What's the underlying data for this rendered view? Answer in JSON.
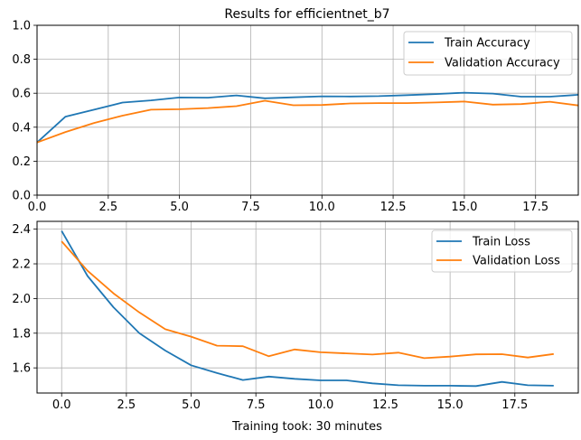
{
  "chart_data": [
    {
      "type": "line",
      "title": "Results for efficientnet_b7",
      "xlabel": "",
      "ylabel": "",
      "xlim": [
        0,
        19
      ],
      "ylim": [
        0,
        1.0
      ],
      "grid": true,
      "legend_position": "top-right",
      "xticks": [
        "0.0",
        "2.5",
        "5.0",
        "7.5",
        "10.0",
        "12.5",
        "15.0",
        "17.5"
      ],
      "yticks": [
        "0.0",
        "0.2",
        "0.4",
        "0.6",
        "0.8",
        "1.0"
      ],
      "x": [
        0,
        1,
        2,
        3,
        4,
        5,
        6,
        7,
        8,
        9,
        10,
        11,
        12,
        13,
        14,
        15,
        16,
        17,
        18,
        19
      ],
      "series": [
        {
          "name": "Train Accuracy",
          "color": "#1f77b4",
          "values": [
            0.31,
            0.462,
            0.503,
            0.545,
            0.558,
            0.575,
            0.574,
            0.587,
            0.57,
            0.576,
            0.582,
            0.581,
            0.583,
            0.589,
            0.595,
            0.603,
            0.598,
            0.58,
            0.58,
            0.591
          ]
        },
        {
          "name": "Validation Accuracy",
          "color": "#ff7f0e",
          "values": [
            0.31,
            0.372,
            0.425,
            0.468,
            0.503,
            0.506,
            0.513,
            0.524,
            0.556,
            0.529,
            0.531,
            0.54,
            0.542,
            0.542,
            0.546,
            0.551,
            0.533,
            0.536,
            0.55,
            0.528
          ]
        }
      ]
    },
    {
      "type": "line",
      "title": "",
      "xlabel": "Training took: 30 minutes",
      "ylabel": "",
      "xlim": [
        -0.95,
        19.95
      ],
      "ylim": [
        1.455,
        2.445
      ],
      "grid": true,
      "legend_position": "top-right",
      "xticks": [
        "0.0",
        "2.5",
        "5.0",
        "7.5",
        "10.0",
        "12.5",
        "15.0",
        "17.5"
      ],
      "yticks": [
        "1.6",
        "1.8",
        "2.0",
        "2.2",
        "2.4"
      ],
      "x": [
        0,
        1,
        2,
        3,
        4,
        5,
        6,
        7,
        8,
        9,
        10,
        11,
        12,
        13,
        14,
        15,
        16,
        17,
        18,
        19
      ],
      "series": [
        {
          "name": "Train Loss",
          "color": "#1f77b4",
          "values": [
            2.39,
            2.13,
            1.95,
            1.8,
            1.7,
            1.615,
            1.57,
            1.53,
            1.55,
            1.537,
            1.528,
            1.528,
            1.511,
            1.5,
            1.497,
            1.497,
            1.495,
            1.519,
            1.5,
            1.497
          ]
        },
        {
          "name": "Validation Loss",
          "color": "#ff7f0e",
          "values": [
            2.33,
            2.16,
            2.03,
            1.92,
            1.823,
            1.78,
            1.728,
            1.725,
            1.667,
            1.706,
            1.69,
            1.684,
            1.677,
            1.688,
            1.656,
            1.665,
            1.678,
            1.679,
            1.66,
            1.68
          ]
        }
      ]
    }
  ]
}
